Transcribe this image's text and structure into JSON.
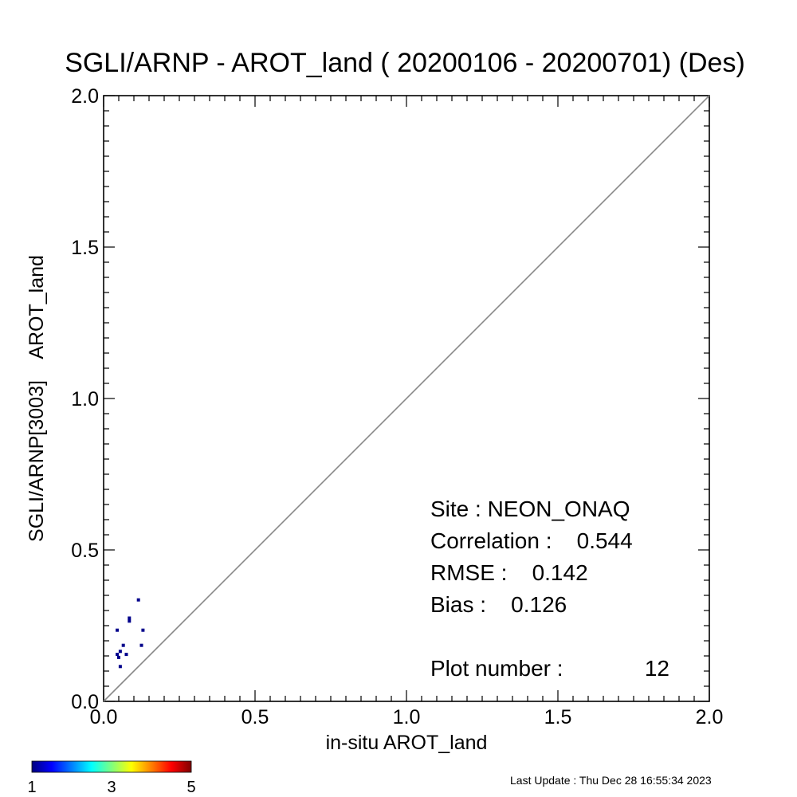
{
  "chart_data": {
    "type": "scatter",
    "title": "SGLI/ARNP - AROT_land ( 20200106 - 20200701) (Des)",
    "xlabel": "in-situ AROT_land",
    "ylabel": "SGLI/ARNP[3003]    AROT_land",
    "xlim": [
      0,
      2
    ],
    "ylim": [
      0,
      2
    ],
    "xticks": [
      0,
      0.5,
      1,
      1.5,
      2
    ],
    "yticks": [
      0,
      0.5,
      1,
      1.5,
      2
    ],
    "xtick_labels": [
      "0.0",
      "0.5",
      "1.0",
      "1.5",
      "2.0"
    ],
    "ytick_labels": [
      "0.0",
      "0.5",
      "1.0",
      "1.5",
      "2.0"
    ],
    "one_to_one_line": true,
    "points": [
      {
        "x": 0.045,
        "y": 0.235
      },
      {
        "x": 0.045,
        "y": 0.155
      },
      {
        "x": 0.05,
        "y": 0.145
      },
      {
        "x": 0.055,
        "y": 0.165
      },
      {
        "x": 0.055,
        "y": 0.115
      },
      {
        "x": 0.065,
        "y": 0.185
      },
      {
        "x": 0.075,
        "y": 0.155
      },
      {
        "x": 0.085,
        "y": 0.265
      },
      {
        "x": 0.085,
        "y": 0.275
      },
      {
        "x": 0.115,
        "y": 0.335
      },
      {
        "x": 0.125,
        "y": 0.185
      },
      {
        "x": 0.13,
        "y": 0.235
      }
    ],
    "point_color": "#00008b",
    "stats": {
      "site": "Site : NEON_ONAQ",
      "correlation": "Correlation :    0.544",
      "rmse": "RMSE :    0.142",
      "bias": "Bias :    0.126",
      "plot_number": "Plot number :",
      "plot_number_value": "12"
    },
    "colorbar": {
      "labels": [
        "1",
        "3",
        "5"
      ],
      "colors": [
        "#00007f",
        "#0000ff",
        "#00bfff",
        "#7fff7f",
        "#ffff00",
        "#ff7f00",
        "#ff0000",
        "#7f0000"
      ]
    },
    "footer": "Last Update : Thu Dec 28 16:55:34 2023"
  }
}
